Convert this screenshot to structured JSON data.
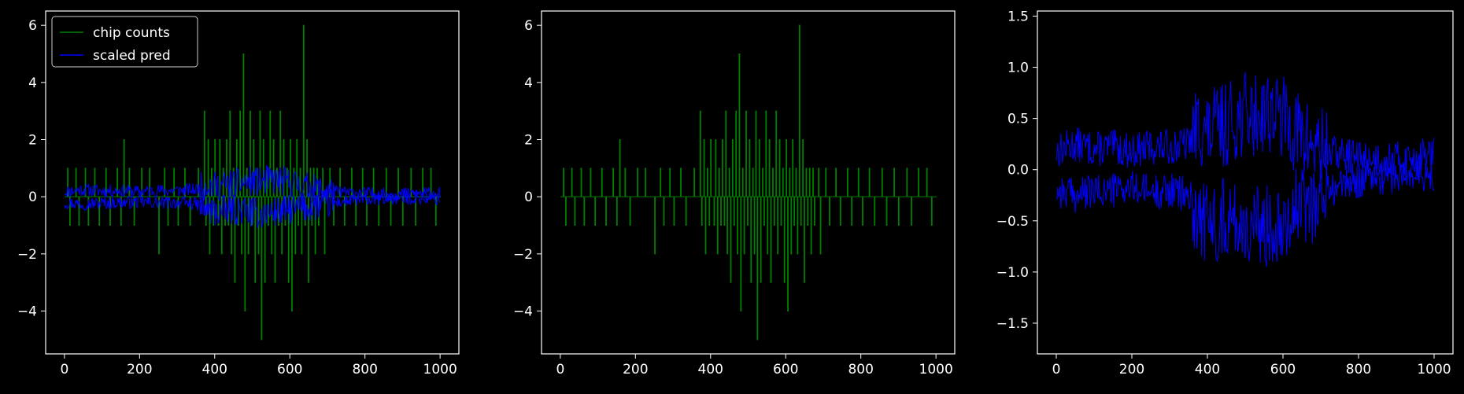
{
  "chart_data": [
    {
      "type": "line",
      "title": "",
      "xlabel": "",
      "ylabel": "",
      "xlim": [
        -50,
        1050
      ],
      "ylim": [
        -5.5,
        6.5
      ],
      "xticks": [
        0,
        200,
        400,
        600,
        800,
        1000
      ],
      "xtick_labels": [
        "0",
        "200",
        "400",
        "600",
        "800",
        "1000"
      ],
      "yticks": [
        -4,
        -2,
        0,
        2,
        4,
        6
      ],
      "ytick_labels": [
        "−4",
        "−2",
        "0",
        "2",
        "4",
        "6"
      ],
      "legend": {
        "placement": "top-left",
        "entries": [
          "chip counts",
          "scaled pred"
        ]
      },
      "grid": false,
      "series": [
        {
          "name": "chip counts",
          "color": "#008000",
          "style": "step",
          "description_x_range": [
            0,
            1000
          ],
          "points": [
            [
              0,
              0
            ],
            [
              8,
              1
            ],
            [
              14,
              -1
            ],
            [
              22,
              0
            ],
            [
              30,
              1
            ],
            [
              38,
              -1
            ],
            [
              46,
              0
            ],
            [
              55,
              1
            ],
            [
              63,
              -1
            ],
            [
              71,
              0
            ],
            [
              80,
              1
            ],
            [
              92,
              -1
            ],
            [
              101,
              0
            ],
            [
              110,
              1
            ],
            [
              121,
              -1
            ],
            [
              130,
              0
            ],
            [
              140,
              1
            ],
            [
              150,
              -1
            ],
            [
              158,
              2
            ],
            [
              163,
              0
            ],
            [
              172,
              1
            ],
            [
              185,
              -1
            ],
            [
              196,
              0
            ],
            [
              205,
              1
            ],
            [
              215,
              0
            ],
            [
              226,
              1
            ],
            [
              240,
              0
            ],
            [
              251,
              -2
            ],
            [
              258,
              0
            ],
            [
              266,
              1
            ],
            [
              275,
              -1
            ],
            [
              284,
              0
            ],
            [
              291,
              1
            ],
            [
              302,
              -1
            ],
            [
              311,
              0
            ],
            [
              320,
              1
            ],
            [
              334,
              -1
            ],
            [
              342,
              0
            ],
            [
              356,
              1
            ],
            [
              366,
              0
            ],
            [
              372,
              3
            ],
            [
              376,
              -1
            ],
            [
              382,
              2
            ],
            [
              386,
              -2
            ],
            [
              391,
              1
            ],
            [
              396,
              -1
            ],
            [
              400,
              2
            ],
            [
              404,
              0
            ],
            [
              409,
              -1
            ],
            [
              413,
              2
            ],
            [
              418,
              -2
            ],
            [
              422,
              1
            ],
            [
              427,
              -1
            ],
            [
              431,
              2
            ],
            [
              436,
              -1
            ],
            [
              440,
              3
            ],
            [
              444,
              -2
            ],
            [
              449,
              1
            ],
            [
              453,
              -3
            ],
            [
              458,
              2
            ],
            [
              462,
              -1
            ],
            [
              467,
              3
            ],
            [
              471,
              -2
            ],
            [
              476,
              5
            ],
            [
              480,
              -4
            ],
            [
              485,
              1
            ],
            [
              489,
              -2
            ],
            [
              494,
              3
            ],
            [
              498,
              -1
            ],
            [
              503,
              2
            ],
            [
              507,
              -3
            ],
            [
              512,
              1
            ],
            [
              516,
              -2
            ],
            [
              520,
              3
            ],
            [
              524,
              -5
            ],
            [
              529,
              2
            ],
            [
              533,
              -3
            ],
            [
              538,
              1
            ],
            [
              542,
              -1
            ],
            [
              547,
              3
            ],
            [
              551,
              -2
            ],
            [
              556,
              2
            ],
            [
              560,
              -3
            ],
            [
              565,
              1
            ],
            [
              569,
              -1
            ],
            [
              574,
              3
            ],
            [
              578,
              -2
            ],
            [
              583,
              2
            ],
            [
              587,
              -1
            ],
            [
              592,
              1
            ],
            [
              596,
              -3
            ],
            [
              601,
              2
            ],
            [
              605,
              -4
            ],
            [
              610,
              1
            ],
            [
              614,
              -2
            ],
            [
              618,
              2
            ],
            [
              622,
              -1
            ],
            [
              627,
              1
            ],
            [
              631,
              -2
            ],
            [
              636,
              6
            ],
            [
              640,
              -1
            ],
            [
              645,
              2
            ],
            [
              649,
              -3
            ],
            [
              654,
              1
            ],
            [
              658,
              -1
            ],
            [
              663,
              1
            ],
            [
              667,
              -2
            ],
            [
              672,
              1
            ],
            [
              676,
              -1
            ],
            [
              681,
              0
            ],
            [
              687,
              1
            ],
            [
              692,
              -2
            ],
            [
              699,
              0
            ],
            [
              706,
              1
            ],
            [
              716,
              -1
            ],
            [
              724,
              0
            ],
            [
              733,
              1
            ],
            [
              745,
              -1
            ],
            [
              752,
              0
            ],
            [
              764,
              1
            ],
            [
              775,
              -1
            ],
            [
              784,
              0
            ],
            [
              793,
              1
            ],
            [
              804,
              -1
            ],
            [
              812,
              0
            ],
            [
              822,
              1
            ],
            [
              836,
              -1
            ],
            [
              845,
              0
            ],
            [
              856,
              1
            ],
            [
              868,
              -1
            ],
            [
              876,
              0
            ],
            [
              888,
              1
            ],
            [
              900,
              -1
            ],
            [
              909,
              0
            ],
            [
              922,
              1
            ],
            [
              934,
              -1
            ],
            [
              942,
              0
            ],
            [
              953,
              1
            ],
            [
              965,
              0
            ],
            [
              975,
              1
            ],
            [
              988,
              -1
            ],
            [
              1000,
              0
            ]
          ]
        },
        {
          "name": "scaled pred",
          "color": "#0000ff",
          "style": "dual-noisy-bands",
          "upper_band": {
            "x": [
              0,
              50,
              100,
              150,
              200,
              250,
              300,
              350,
              380,
              400,
              420,
              450,
              480,
              500,
              520,
              550,
              580,
              600,
              630,
              660,
              700,
              750,
              800,
              850,
              900,
              950,
              1000
            ],
            "y": [
              0.18,
              0.25,
              0.2,
              0.22,
              0.18,
              0.22,
              0.22,
              0.25,
              0.45,
              0.35,
              0.4,
              0.45,
              0.5,
              0.55,
              0.5,
              0.6,
              0.55,
              0.5,
              0.4,
              0.28,
              0.2,
              0.15,
              0.12,
              0.1,
              0.1,
              0.12,
              0.15
            ]
          },
          "lower_band": {
            "x": [
              0,
              50,
              100,
              150,
              200,
              250,
              300,
              350,
              380,
              400,
              420,
              450,
              480,
              500,
              520,
              550,
              580,
              600,
              630,
              660,
              700,
              750,
              800,
              850,
              900,
              950,
              1000
            ],
            "y": [
              -0.2,
              -0.25,
              -0.22,
              -0.2,
              -0.18,
              -0.22,
              -0.2,
              -0.25,
              -0.45,
              -0.55,
              -0.5,
              -0.45,
              -0.5,
              -0.55,
              -0.6,
              -0.55,
              -0.5,
              -0.45,
              -0.4,
              -0.35,
              -0.25,
              -0.15,
              -0.1,
              -0.08,
              -0.06,
              -0.06,
              -0.08
            ]
          }
        }
      ]
    },
    {
      "type": "line",
      "title": "",
      "xlabel": "",
      "ylabel": "",
      "xlim": [
        -50,
        1050
      ],
      "ylim": [
        -5.5,
        6.5
      ],
      "xticks": [
        0,
        200,
        400,
        600,
        800,
        1000
      ],
      "xtick_labels": [
        "0",
        "200",
        "400",
        "600",
        "800",
        "1000"
      ],
      "yticks": [
        -4,
        -2,
        0,
        2,
        4,
        6
      ],
      "ytick_labels": [
        "−4",
        "−2",
        "0",
        "2",
        "4",
        "6"
      ],
      "grid": false,
      "series": [
        {
          "color": "#008000",
          "style": "step",
          "same_as": "chip counts"
        }
      ]
    },
    {
      "type": "line",
      "title": "",
      "xlabel": "",
      "ylabel": "",
      "xlim": [
        -50,
        1050
      ],
      "ylim": [
        -1.8,
        1.55
      ],
      "xticks": [
        0,
        200,
        400,
        600,
        800,
        1000
      ],
      "xtick_labels": [
        "0",
        "200",
        "400",
        "600",
        "800",
        "1000"
      ],
      "yticks": [
        -1.5,
        -1.0,
        -0.5,
        0.0,
        0.5,
        1.0,
        1.5
      ],
      "ytick_labels": [
        "−1.5",
        "−1.0",
        "−0.5",
        "0.0",
        "0.5",
        "1.0",
        "1.5"
      ],
      "grid": false,
      "series": [
        {
          "color": "#0000ff",
          "style": "dual-noisy-bands",
          "same_as": "scaled pred"
        }
      ]
    }
  ]
}
